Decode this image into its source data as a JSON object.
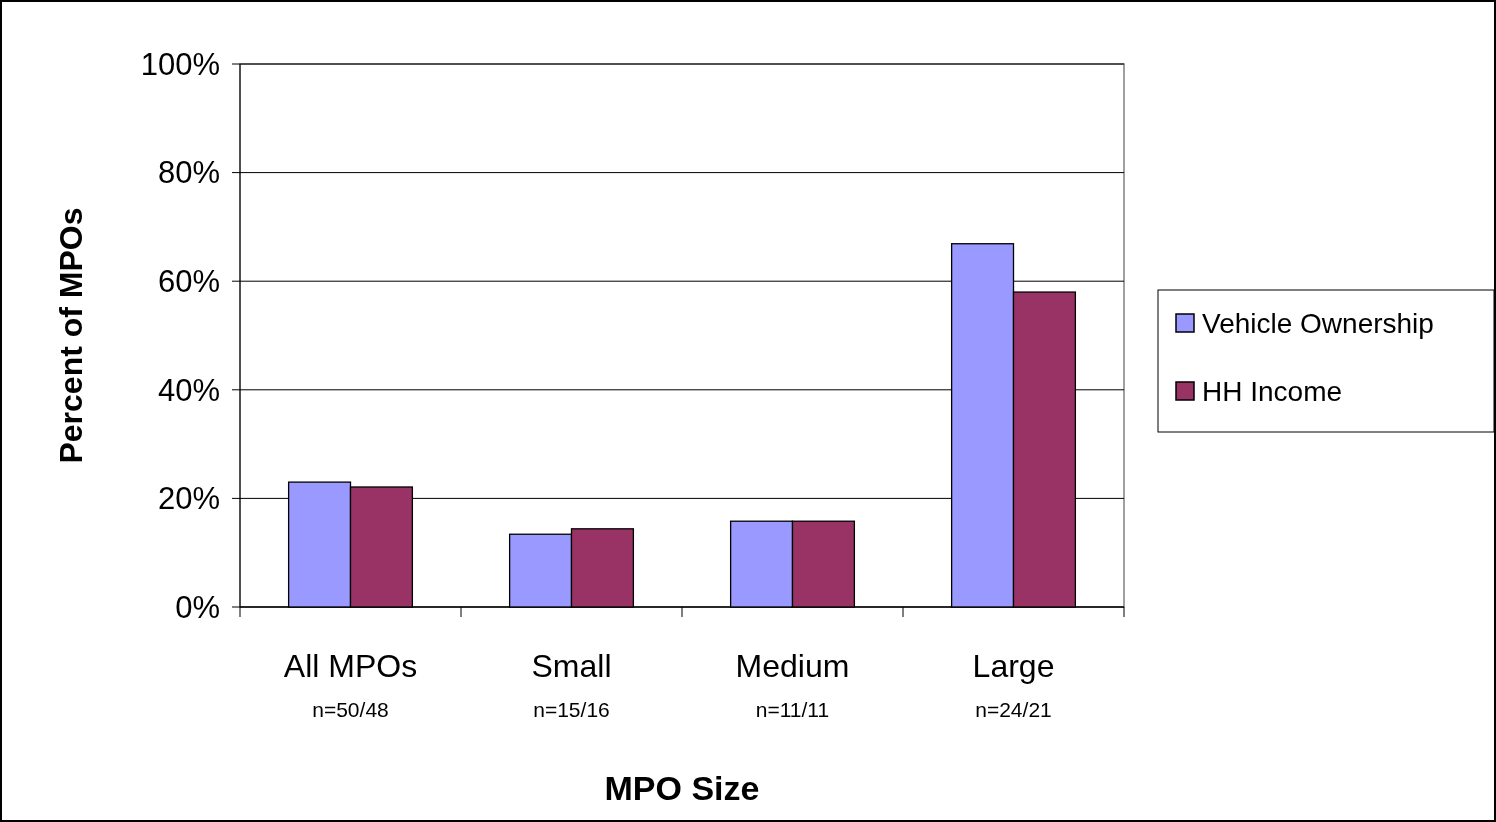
{
  "chart_data": {
    "type": "bar",
    "xlabel": "MPO Size",
    "ylabel": "Percent of MPOs",
    "categories": [
      "All MPOs",
      "Small",
      "Medium",
      "Large"
    ],
    "series": [
      {
        "name": "Vehicle Ownership",
        "color": "#9999ff",
        "values": [
          23,
          13.4,
          15.8,
          66.9
        ]
      },
      {
        "name": "HH Income",
        "color": "#993366",
        "values": [
          22.1,
          14.4,
          15.8,
          58
        ]
      }
    ],
    "ylim": [
      0,
      100
    ],
    "yticks": [
      {
        "value": 0,
        "label": "0%"
      },
      {
        "value": 20,
        "label": "20%"
      },
      {
        "value": 40,
        "label": "40%"
      },
      {
        "value": 60,
        "label": "60%"
      },
      {
        "value": 80,
        "label": "80%"
      },
      {
        "value": 100,
        "label": "100%"
      }
    ],
    "grid": "y",
    "legend": "right",
    "annotations": [
      "n=50/48",
      "n=15/16",
      "n=11/11",
      "n=24/21"
    ]
  }
}
